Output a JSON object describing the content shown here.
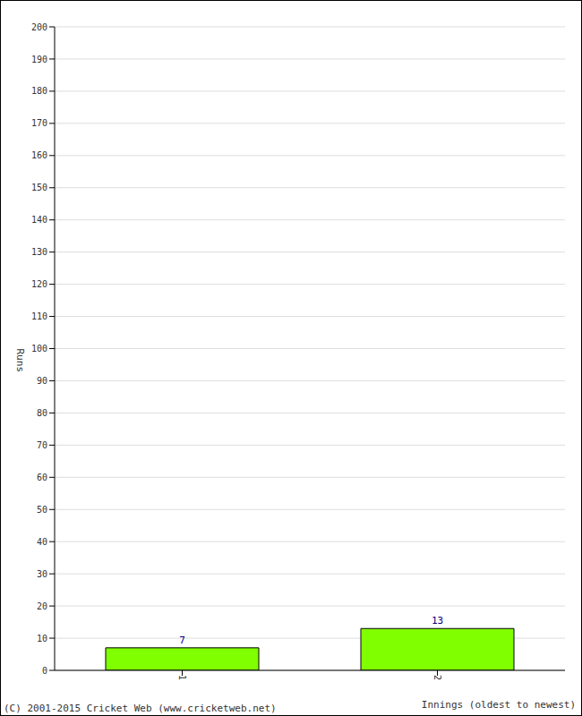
{
  "chart_data": {
    "type": "bar",
    "categories": [
      "1",
      "2"
    ],
    "values": [
      7,
      13
    ],
    "color": "#80ff00",
    "ylim": [
      0,
      200
    ],
    "yticks": [
      0,
      10,
      20,
      30,
      40,
      50,
      60,
      70,
      80,
      90,
      100,
      110,
      120,
      130,
      140,
      150,
      160,
      170,
      180,
      190,
      200
    ],
    "grid": true,
    "data_labels": true,
    "x_label": "Innings (oldest to newest)",
    "y_label": "Runs",
    "annotations": [
      "(C) 2001-2015 Cricket Web (www.cricketweb.net)"
    ]
  }
}
